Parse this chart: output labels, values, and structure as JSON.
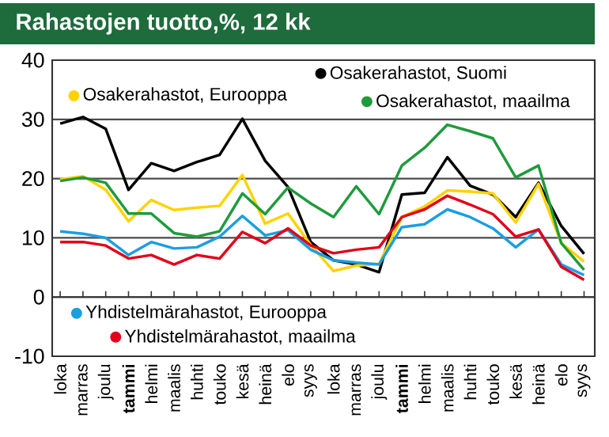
{
  "chart_data": {
    "type": "line",
    "title": "Rahastojen tuotto,%, 12 kk",
    "categories": [
      "loka",
      "marras",
      "joulu",
      "**tammi**",
      "helmi",
      "maalis",
      "huhti",
      "touko",
      "kesä",
      "heinä",
      "elo",
      "syys",
      "loka",
      "marras",
      "joulu",
      "**tammi**",
      "helmi",
      "maalis",
      "huhti",
      "touko",
      "kesä",
      "heinä",
      "elo",
      "syys"
    ],
    "series": [
      {
        "name": "Osakerahastot, Suomi",
        "color": "#000000",
        "values": [
          29.3,
          30.4,
          28.4,
          18.1,
          22.6,
          21.3,
          22.8,
          24.0,
          30.1,
          23.0,
          18.6,
          9.3,
          6.2,
          5.5,
          4.2,
          17.3,
          17.6,
          23.6,
          18.8,
          17.3,
          13.5,
          19.3,
          12.0,
          7.3
        ]
      },
      {
        "name": "Osakerahastot, Eurooppa",
        "color": "#ffd200",
        "values": [
          19.9,
          20.4,
          18.1,
          12.8,
          16.4,
          14.7,
          15.1,
          15.4,
          20.6,
          12.4,
          14.1,
          8.8,
          4.4,
          5.3,
          5.6,
          13.5,
          15.3,
          18.0,
          17.8,
          17.5,
          12.6,
          19.1,
          9.1,
          6.0
        ]
      },
      {
        "name": "Osakerahastot, maailma",
        "color": "#1e9b3c",
        "values": [
          19.6,
          20.2,
          19.3,
          14.1,
          14.1,
          10.8,
          10.2,
          11.1,
          17.5,
          14.0,
          18.5,
          15.8,
          13.5,
          18.7,
          14.0,
          22.2,
          25.2,
          29.1,
          28.0,
          26.8,
          20.2,
          22.2,
          9.1,
          4.6
        ]
      },
      {
        "name": "Yhdistelmärahastot, Eurooppa",
        "color": "#1a9fe0",
        "values": [
          11.1,
          10.7,
          10.0,
          7.1,
          9.3,
          8.2,
          8.4,
          10.2,
          13.7,
          10.4,
          11.3,
          8.0,
          6.2,
          5.8,
          5.5,
          11.8,
          12.3,
          14.8,
          13.5,
          11.6,
          8.4,
          11.4,
          5.5,
          3.7
        ]
      },
      {
        "name": "Yhdistelmärahastot, maailma",
        "color": "#e2001a",
        "values": [
          9.3,
          9.3,
          8.7,
          6.5,
          7.1,
          5.5,
          7.1,
          6.5,
          11.0,
          9.1,
          11.6,
          8.7,
          7.4,
          8.0,
          8.4,
          13.5,
          14.8,
          17.1,
          15.6,
          14.0,
          10.2,
          11.4,
          5.1,
          2.9
        ]
      }
    ],
    "ylim": [
      -10,
      40
    ],
    "yticks": [
      -10,
      0,
      10,
      20,
      30,
      40
    ],
    "grid": "y",
    "legend": "top",
    "marker": "none",
    "line_style": "solid"
  }
}
